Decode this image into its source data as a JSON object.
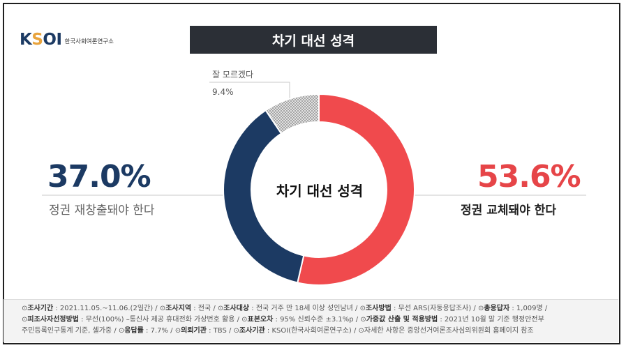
{
  "logo": {
    "mark": "KSOI",
    "subtitle": "한국사회여론연구소"
  },
  "title": "차기 대선 성격",
  "chart_data": {
    "type": "pie",
    "title": "차기 대선 성격",
    "center_label": "차기 대선 성격",
    "slices": [
      {
        "label": "정권 교체돼야 한다",
        "value": 53.6,
        "display": "53.6%",
        "color": "#f04a4d"
      },
      {
        "label": "정권 재창출돼야 한다",
        "value": 37.0,
        "display": "37.0%",
        "color": "#1c3a63"
      },
      {
        "label": "잘 모르겠다",
        "value": 9.4,
        "display": "9.4%",
        "color": "#bdbdbd",
        "pattern": "dotted"
      }
    ]
  },
  "footer": {
    "line1": [
      {
        "k": "조사기간",
        "v": " : 2021.11.05.~11.06.(2일간)  / "
      },
      {
        "k": "조사지역",
        "v": " : 전국 / "
      },
      {
        "k": "조사대상",
        "v": " : 전국 거주 만 18세 이상 성인남녀 / "
      },
      {
        "k": "조사방법",
        "v": " : 무선 ARS(자동응답조사) / "
      },
      {
        "k": "총응답자",
        "v": " : 1,009명 /"
      }
    ],
    "line2": [
      {
        "k": "피조사자선정방법",
        "v": " : 무선(100%) –통신사 제공 휴대전화 가상번호 활용 / "
      },
      {
        "k": "표본오차",
        "v": " : 95% 신뢰수준 ±3.1%p / "
      },
      {
        "k": "가중값 산출 및 적용방법",
        "v": " : 2021년 10월 말 기준 행정안전부"
      }
    ],
    "line3_prefix": "주민등록인구통계 기준, 셀가중 / ",
    "line3": [
      {
        "k": "응답률",
        "v": " : 7.7% / "
      },
      {
        "k": "의뢰기관",
        "v": " : TBS / "
      },
      {
        "k": "조사기관",
        "v": " : KSOI(한국사회여론연구소) / "
      }
    ],
    "line3_note": "자세한 사항은 중앙선거여론조사심의위원회 홈페이지 참조"
  }
}
